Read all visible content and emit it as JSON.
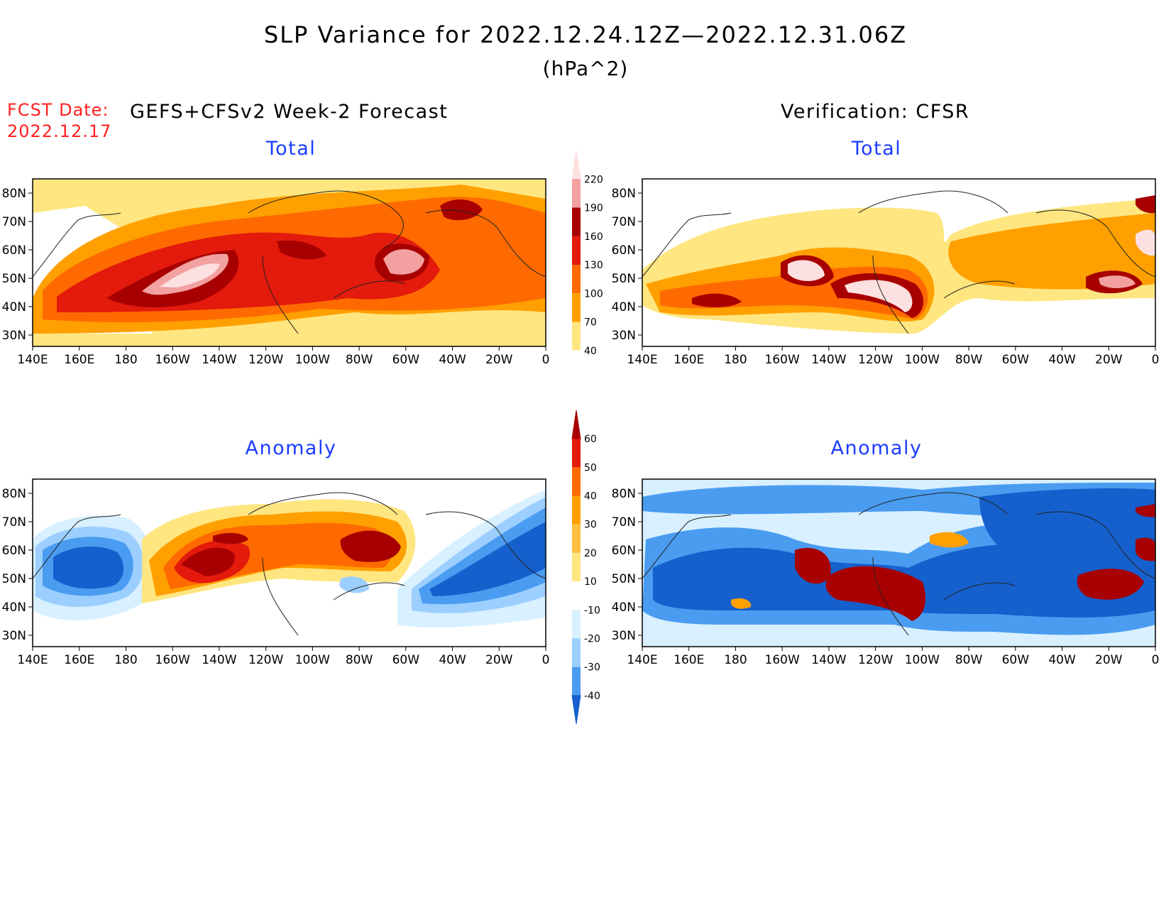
{
  "title": "SLP Variance for 2022.12.24.12Z—2022.12.31.06Z",
  "unit": "(hPa^2)",
  "forecast_date_label": "FCST Date:",
  "forecast_date": "2022.12.17",
  "left_header": "GEFS+CFSv2 Week-2 Forecast",
  "right_header": "Verification: CFSR",
  "panels": [
    {
      "title": "Total"
    },
    {
      "title": "Total"
    },
    {
      "title": "Anomaly"
    },
    {
      "title": "Anomaly"
    }
  ],
  "axes": {
    "lon_labels": [
      "140E",
      "160E",
      "180",
      "160W",
      "140W",
      "120W",
      "100W",
      "80W",
      "60W",
      "40W",
      "20W",
      "0"
    ],
    "lat_labels": [
      "80N",
      "70N",
      "60N",
      "50N",
      "40N",
      "30N"
    ]
  },
  "colorbars": {
    "total": {
      "levels": [
        "40",
        "70",
        "100",
        "130",
        "160",
        "190",
        "220"
      ],
      "colors": [
        "#ffffff",
        "#ffe680",
        "#ffa000",
        "#ff6a00",
        "#e31a0c",
        "#a80000",
        "#f2a0a0",
        "#fde0e0"
      ]
    },
    "anomaly": {
      "levels": [
        "60",
        "50",
        "40",
        "30",
        "20",
        "10",
        "-10",
        "-20",
        "-30",
        "-40"
      ],
      "colors": [
        "#a80000",
        "#e31a0c",
        "#ff6a00",
        "#ffa000",
        "#ffc040",
        "#ffe680",
        "#ffffff",
        "#d8f0ff",
        "#9ccfff",
        "#4a9cf0",
        "#1560cc"
      ]
    }
  }
}
